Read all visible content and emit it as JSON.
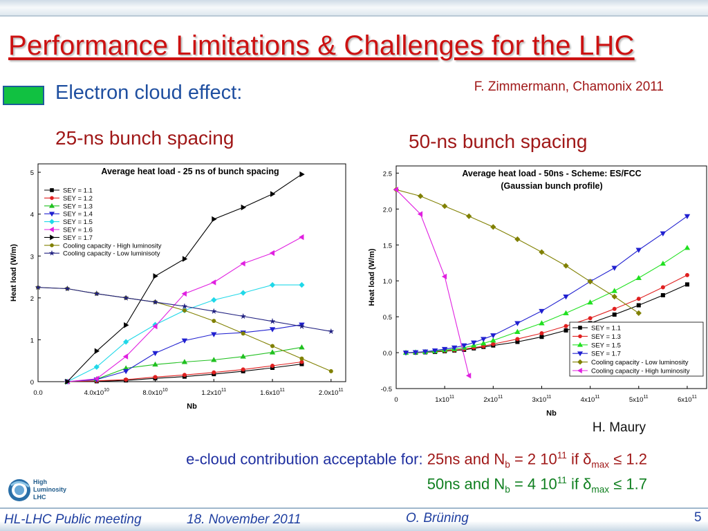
{
  "slide": {
    "title": "Performance Limitations & Challenges for the LHC",
    "subtitle": "Electron cloud effect:",
    "credit": "F. Zimmermann, Chamonix 2011",
    "label_25": "25-ns bunch spacing",
    "label_50": "50-ns bunch spacing",
    "author2": "H. Maury",
    "conclusion": {
      "prefix": "e-cloud contribution acceptable for:",
      "line1": {
        "a": "25ns and N",
        "sub": "b",
        "b": " = 2 10",
        "sup": "11",
        "c": " if ",
        "delta": "δ",
        "sub2": "max",
        "d": " ≤ 1.2"
      },
      "line2": {
        "a": "50ns and N",
        "sub": "b",
        "b": " = 4 10",
        "sup": "11",
        "c": " if ",
        "delta": "δ",
        "sub2": "max",
        "d": " ≤ 1.7"
      }
    },
    "logo_text": [
      "High",
      "Luminosity",
      "LHC"
    ],
    "logo_icon": "hl-lhc-logo",
    "footer": {
      "meeting": "HL-LHC Public meeting",
      "date": "18. November 2011",
      "author": "O. Brüning",
      "page": "5"
    }
  },
  "colors": {
    "title": "#cc1111",
    "subtitle": "#1f4fa0",
    "accent_red": "#a01818",
    "accent_green": "#11c141",
    "footer_text": "#1f3fa0"
  },
  "chart_data": [
    {
      "type": "line",
      "title": "Average heat load  - 25 ns of bunch spacing",
      "xlabel": "Nb",
      "ylabel": "Heat load (W/m)",
      "xlim": [
        0,
        210000000000.0
      ],
      "ylim": [
        0,
        5.2
      ],
      "xticks": [
        0,
        40000000000.0,
        80000000000.0,
        120000000000.0,
        160000000000.0,
        200000000000.0
      ],
      "xtick_labels": [
        [
          "0.0",
          ""
        ],
        [
          "4.0x10",
          "10"
        ],
        [
          "8.0x10",
          "10"
        ],
        [
          "1.2x10",
          "11"
        ],
        [
          "1.6x10",
          "11"
        ],
        [
          "2.0x10",
          "11"
        ]
      ],
      "yticks": [
        0,
        1,
        2,
        3,
        4,
        5
      ],
      "ytick_labels": [
        "0",
        "1",
        "2",
        "3",
        "4",
        "5"
      ],
      "grid": false,
      "legend_position": "top-left",
      "series": [
        {
          "name": "SEY = 1.1",
          "color": "#000000",
          "marker": "square",
          "x": [
            20000000000.0,
            40000000000.0,
            60000000000.0,
            80000000000.0,
            100000000000.0,
            120000000000.0,
            140000000000.0,
            160000000000.0,
            180000000000.0
          ],
          "y": [
            0,
            0.01,
            0.03,
            0.08,
            0.12,
            0.18,
            0.25,
            0.33,
            0.42
          ]
        },
        {
          "name": "SEY = 1.2",
          "color": "#e02020",
          "marker": "circle",
          "x": [
            20000000000.0,
            40000000000.0,
            60000000000.0,
            80000000000.0,
            100000000000.0,
            120000000000.0,
            140000000000.0,
            160000000000.0,
            180000000000.0
          ],
          "y": [
            0,
            0.02,
            0.05,
            0.11,
            0.16,
            0.22,
            0.29,
            0.38,
            0.47
          ]
        },
        {
          "name": "SEY = 1.3",
          "color": "#20c020",
          "marker": "triangle-up",
          "x": [
            20000000000.0,
            40000000000.0,
            60000000000.0,
            80000000000.0,
            100000000000.0,
            120000000000.0,
            140000000000.0,
            160000000000.0,
            180000000000.0
          ],
          "y": [
            0,
            0.06,
            0.32,
            0.41,
            0.47,
            0.52,
            0.6,
            0.7,
            0.82
          ]
        },
        {
          "name": "SEY = 1.4",
          "color": "#2020d0",
          "marker": "triangle-down",
          "x": [
            20000000000.0,
            40000000000.0,
            60000000000.0,
            80000000000.0,
            100000000000.0,
            120000000000.0,
            140000000000.0,
            160000000000.0,
            180000000000.0
          ],
          "y": [
            0,
            0.05,
            0.25,
            0.68,
            0.98,
            1.13,
            1.17,
            1.25,
            1.36
          ]
        },
        {
          "name": "SEY = 1.5",
          "color": "#20d8e8",
          "marker": "diamond",
          "x": [
            20000000000.0,
            40000000000.0,
            60000000000.0,
            80000000000.0,
            100000000000.0,
            120000000000.0,
            140000000000.0,
            160000000000.0,
            180000000000.0
          ],
          "y": [
            0,
            0.35,
            0.95,
            1.36,
            1.7,
            1.95,
            2.12,
            2.31,
            2.31
          ]
        },
        {
          "name": "SEY = 1.6",
          "color": "#e020e0",
          "marker": "triangle-left",
          "x": [
            20000000000.0,
            40000000000.0,
            60000000000.0,
            80000000000.0,
            100000000000.0,
            120000000000.0,
            140000000000.0,
            160000000000.0,
            180000000000.0
          ],
          "y": [
            0,
            0.07,
            0.6,
            1.32,
            2.1,
            2.37,
            2.82,
            3.07,
            3.45
          ]
        },
        {
          "name": "SEY = 1.7",
          "color": "#000000",
          "marker": "triangle-right",
          "x": [
            20000000000.0,
            40000000000.0,
            60000000000.0,
            80000000000.0,
            100000000000.0,
            120000000000.0,
            140000000000.0,
            160000000000.0,
            180000000000.0
          ],
          "y": [
            0,
            0.73,
            1.35,
            2.52,
            2.93,
            3.88,
            4.16,
            4.48,
            4.95
          ]
        },
        {
          "name": "Cooling capacity - High luminosity",
          "color": "#808000",
          "marker": "circle",
          "x": [
            0,
            20000000000.0,
            40000000000.0,
            60000000000.0,
            80000000000.0,
            100000000000.0,
            120000000000.0,
            140000000000.0,
            160000000000.0,
            180000000000.0,
            200000000000.0
          ],
          "y": [
            2.25,
            2.22,
            2.1,
            2.0,
            1.9,
            1.7,
            1.45,
            1.15,
            0.85,
            0.55,
            0.25
          ]
        },
        {
          "name": "Cooling capacity - Low luminisoty",
          "color": "#202080",
          "marker": "star",
          "x": [
            0,
            20000000000.0,
            40000000000.0,
            60000000000.0,
            80000000000.0,
            100000000000.0,
            120000000000.0,
            140000000000.0,
            160000000000.0,
            180000000000.0,
            200000000000.0
          ],
          "y": [
            2.25,
            2.22,
            2.1,
            2.0,
            1.9,
            1.8,
            1.68,
            1.56,
            1.44,
            1.32,
            1.2
          ]
        }
      ]
    },
    {
      "type": "line",
      "title": "Average heat load  - 50ns - Scheme: ES/FCC",
      "subtitle": "(Gaussian bunch profile)",
      "xlabel": "Nb",
      "ylabel": "Heat load (W/m)",
      "xlim": [
        0,
        640000000000.0
      ],
      "ylim": [
        -0.5,
        2.6
      ],
      "xticks": [
        0,
        100000000000.0,
        200000000000.0,
        300000000000.0,
        400000000000.0,
        500000000000.0,
        600000000000.0
      ],
      "xtick_labels": [
        [
          "0",
          ""
        ],
        [
          "1x10",
          "11"
        ],
        [
          "2x10",
          "11"
        ],
        [
          "3x10",
          "11"
        ],
        [
          "4x10",
          "11"
        ],
        [
          "5x10",
          "11"
        ],
        [
          "6x10",
          "11"
        ]
      ],
      "yticks": [
        -0.5,
        0,
        0.5,
        1,
        1.5,
        2,
        2.5
      ],
      "ytick_labels": [
        "-0.5",
        "0.0",
        "0.5",
        "1.0",
        "1.5",
        "2.0",
        "2.5"
      ],
      "grid": false,
      "legend_position": "bottom-right",
      "series": [
        {
          "name": "SEY = 1.1",
          "color": "#000000",
          "marker": "square",
          "x": [
            20000000000.0,
            40000000000.0,
            60000000000.0,
            80000000000.0,
            100000000000.0,
            120000000000.0,
            140000000000.0,
            160000000000.0,
            180000000000.0,
            200000000000.0,
            250000000000.0,
            300000000000.0,
            350000000000.0,
            400000000000.0,
            450000000000.0,
            500000000000.0,
            550000000000.0,
            600000000000.0
          ],
          "y": [
            0,
            0,
            0.005,
            0.01,
            0.02,
            0.03,
            0.04,
            0.06,
            0.08,
            0.1,
            0.15,
            0.22,
            0.31,
            0.41,
            0.53,
            0.66,
            0.8,
            0.95
          ]
        },
        {
          "name": "SEY = 1.3",
          "color": "#e02020",
          "marker": "circle",
          "x": [
            20000000000.0,
            40000000000.0,
            60000000000.0,
            80000000000.0,
            100000000000.0,
            120000000000.0,
            140000000000.0,
            160000000000.0,
            180000000000.0,
            200000000000.0,
            250000000000.0,
            300000000000.0,
            350000000000.0,
            400000000000.0,
            450000000000.0,
            500000000000.0,
            550000000000.0,
            600000000000.0
          ],
          "y": [
            0,
            0,
            0.01,
            0.015,
            0.025,
            0.035,
            0.05,
            0.07,
            0.09,
            0.12,
            0.19,
            0.27,
            0.37,
            0.48,
            0.61,
            0.75,
            0.91,
            1.08
          ]
        },
        {
          "name": "SEY = 1.5",
          "color": "#20e020",
          "marker": "triangle-up",
          "x": [
            20000000000.0,
            40000000000.0,
            60000000000.0,
            80000000000.0,
            100000000000.0,
            120000000000.0,
            140000000000.0,
            160000000000.0,
            180000000000.0,
            200000000000.0,
            250000000000.0,
            300000000000.0,
            350000000000.0,
            400000000000.0,
            450000000000.0,
            500000000000.0,
            550000000000.0,
            600000000000.0
          ],
          "y": [
            0,
            0.005,
            0.01,
            0.02,
            0.035,
            0.05,
            0.07,
            0.1,
            0.13,
            0.17,
            0.29,
            0.41,
            0.55,
            0.7,
            0.86,
            1.04,
            1.24,
            1.46
          ]
        },
        {
          "name": "SEY = 1.7",
          "color": "#2020d0",
          "marker": "triangle-down",
          "x": [
            20000000000.0,
            40000000000.0,
            60000000000.0,
            80000000000.0,
            100000000000.0,
            120000000000.0,
            140000000000.0,
            160000000000.0,
            180000000000.0,
            200000000000.0,
            250000000000.0,
            300000000000.0,
            350000000000.0,
            400000000000.0,
            450000000000.0,
            500000000000.0,
            550000000000.0,
            600000000000.0
          ],
          "y": [
            0,
            0.005,
            0.015,
            0.03,
            0.05,
            0.07,
            0.1,
            0.14,
            0.19,
            0.24,
            0.41,
            0.58,
            0.78,
            0.99,
            1.18,
            1.43,
            1.66,
            1.9
          ]
        },
        {
          "name": "Cooling capacity - Low luminosity",
          "color": "#808000",
          "marker": "diamond",
          "x": [
            0,
            50000000000.0,
            100000000000.0,
            150000000000.0,
            200000000000.0,
            250000000000.0,
            300000000000.0,
            350000000000.0,
            400000000000.0,
            450000000000.0,
            500000000000.0
          ],
          "y": [
            2.27,
            2.18,
            2.04,
            1.9,
            1.75,
            1.58,
            1.4,
            1.21,
            0.99,
            0.78,
            0.55
          ]
        },
        {
          "name": "Cooling capacity - High luminosity",
          "color": "#e020e0",
          "marker": "triangle-left",
          "x": [
            0,
            50000000000.0,
            100000000000.0,
            150000000000.0
          ],
          "y": [
            2.27,
            1.93,
            1.06,
            -0.32
          ]
        }
      ]
    }
  ]
}
